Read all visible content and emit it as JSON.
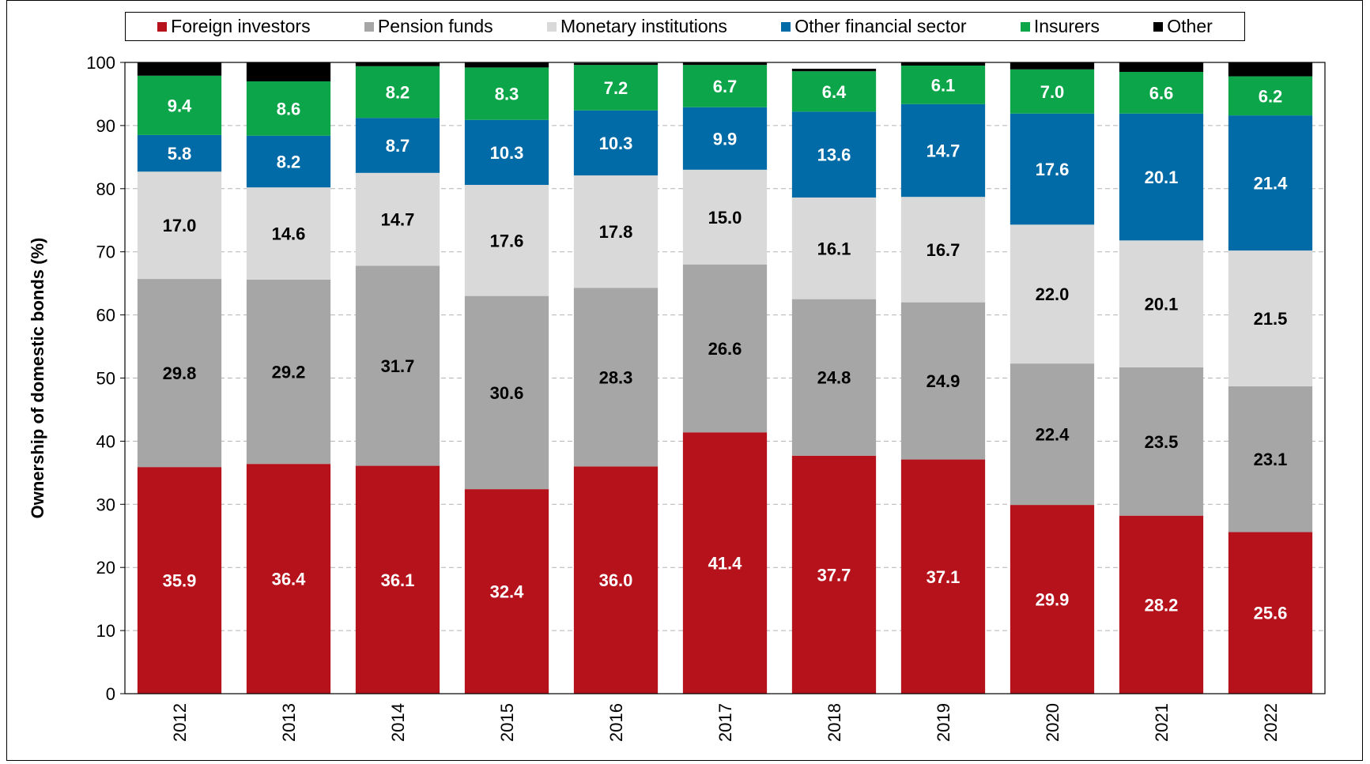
{
  "chart_data": {
    "type": "bar",
    "stacked": true,
    "title": "",
    "xlabel": "",
    "ylabel": "Ownership of domestic bonds (%)",
    "ylim": [
      0,
      100
    ],
    "yticks": [
      "0",
      "10",
      "20",
      "30",
      "40",
      "50",
      "60",
      "70",
      "80",
      "90",
      "100"
    ],
    "grid": "horizontal dashed",
    "legend_position": "top",
    "categories": [
      "2012",
      "2013",
      "2014",
      "2015",
      "2016",
      "2017",
      "2018",
      "2019",
      "2020",
      "2021",
      "2022"
    ],
    "series": [
      {
        "name": "Foreign investors",
        "color": "#B5121B",
        "label_color": "#ffffff",
        "values": [
          35.9,
          36.4,
          36.1,
          32.4,
          36.0,
          41.4,
          37.7,
          37.1,
          29.9,
          28.2,
          25.6
        ],
        "labels": [
          "35.9",
          "36.4",
          "36.1",
          "32.4",
          "36.0",
          "41.4",
          "37.7",
          "37.1",
          "29.9",
          "28.2",
          "25.6"
        ]
      },
      {
        "name": "Pension funds",
        "color": "#A6A6A6",
        "label_color": "#000000",
        "values": [
          29.8,
          29.2,
          31.7,
          30.6,
          28.3,
          26.6,
          24.8,
          24.9,
          22.4,
          23.5,
          23.1
        ],
        "labels": [
          "29.8",
          "29.2",
          "31.7",
          "30.6",
          "28.3",
          "26.6",
          "24.8",
          "24.9",
          "22.4",
          "23.5",
          "23.1"
        ]
      },
      {
        "name": "Monetary institutions",
        "color": "#D9D9D9",
        "label_color": "#000000",
        "values": [
          17.0,
          14.6,
          14.7,
          17.6,
          17.8,
          15.0,
          16.1,
          16.7,
          22.0,
          20.1,
          21.5
        ],
        "labels": [
          "17.0",
          "14.6",
          "14.7",
          "17.6",
          "17.8",
          "15.0",
          "16.1",
          "16.7",
          "22.0",
          "20.1",
          "21.5"
        ]
      },
      {
        "name": "Other financial sector",
        "color": "#006BA6",
        "label_color": "#ffffff",
        "values": [
          5.8,
          8.2,
          8.7,
          10.3,
          10.3,
          9.9,
          13.6,
          14.7,
          17.6,
          20.1,
          21.4
        ],
        "labels": [
          "5.8",
          "8.2",
          "8.7",
          "10.3",
          "10.3",
          "9.9",
          "13.6",
          "14.7",
          "17.6",
          "20.1",
          "21.4"
        ]
      },
      {
        "name": "Insurers",
        "color": "#0DA54A",
        "label_color": "#ffffff",
        "values": [
          9.4,
          8.6,
          8.2,
          8.3,
          7.2,
          6.7,
          6.4,
          6.1,
          7.0,
          6.6,
          6.2
        ],
        "labels": [
          "9.4",
          "8.6",
          "8.2",
          "8.3",
          "7.2",
          "6.7",
          "6.4",
          "6.1",
          "7.0",
          "6.6",
          "6.2"
        ]
      },
      {
        "name": "Other",
        "color": "#000000",
        "label_color": "#ffffff",
        "values": [
          2.1,
          3.1,
          0.8,
          0.9,
          0.3,
          0.4,
          0.4,
          0.6,
          1.2,
          1.7,
          2.2
        ]
      }
    ]
  }
}
